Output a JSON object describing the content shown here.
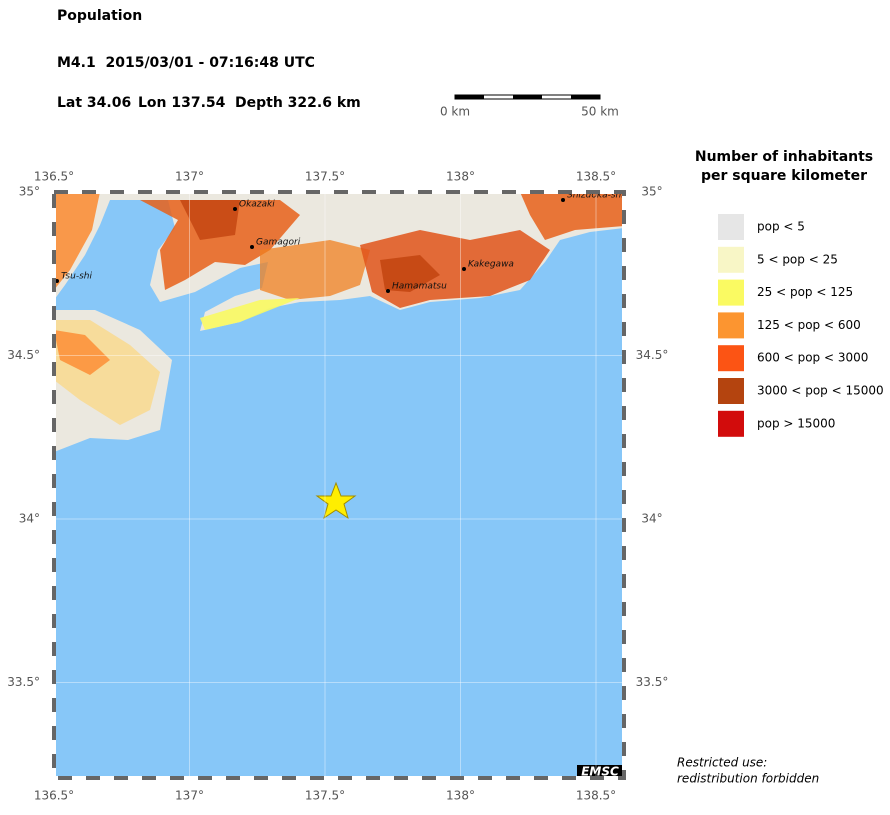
{
  "header": {
    "title": "Population",
    "event": "M4.1  2015/03/01 - 07:16:48 UTC",
    "lat": "Lat 34.06",
    "lon": "Lon 137.54",
    "depth": "Depth 322.6 km"
  },
  "scale_bar": {
    "start": "0 km",
    "end": "50 km"
  },
  "map": {
    "lon_ticks": [
      {
        "value": 136.5,
        "label": "136.5°"
      },
      {
        "value": 137,
        "label": "137°"
      },
      {
        "value": 137.5,
        "label": "137.5°"
      },
      {
        "value": 138,
        "label": "138°"
      },
      {
        "value": 138.5,
        "label": "138.5°"
      }
    ],
    "lat_ticks": [
      {
        "value": 35,
        "label": "35°"
      },
      {
        "value": 34.5,
        "label": "34.5°"
      },
      {
        "value": 34,
        "label": "34°"
      },
      {
        "value": 33.5,
        "label": "33.5°"
      }
    ],
    "cities": [
      "Okazaki",
      "Gamagori",
      "Tsu-shi",
      "Hamamatsu",
      "Kakegawa",
      "Shizuoka-shi"
    ],
    "logo": "EMSC"
  },
  "legend": {
    "title": [
      "Number of inhabitants",
      "per square kilometer"
    ],
    "items": [
      {
        "label": "pop < 5",
        "color": "#e6e6e6"
      },
      {
        "label": "5 < pop < 25",
        "color": "#f8f6c6"
      },
      {
        "label": "25 < pop < 125",
        "color": "#fafa62"
      },
      {
        "label": "125 < pop < 600",
        "color": "#fc9530"
      },
      {
        "label": "600 < pop < 3000",
        "color": "#fc5414"
      },
      {
        "label": "3000 < pop < 15000",
        "color": "#b4440f"
      },
      {
        "label": "pop > 15000",
        "color": "#d20c0c"
      }
    ]
  },
  "footer": [
    "Restricted use:",
    "redistribution forbidden"
  ]
}
